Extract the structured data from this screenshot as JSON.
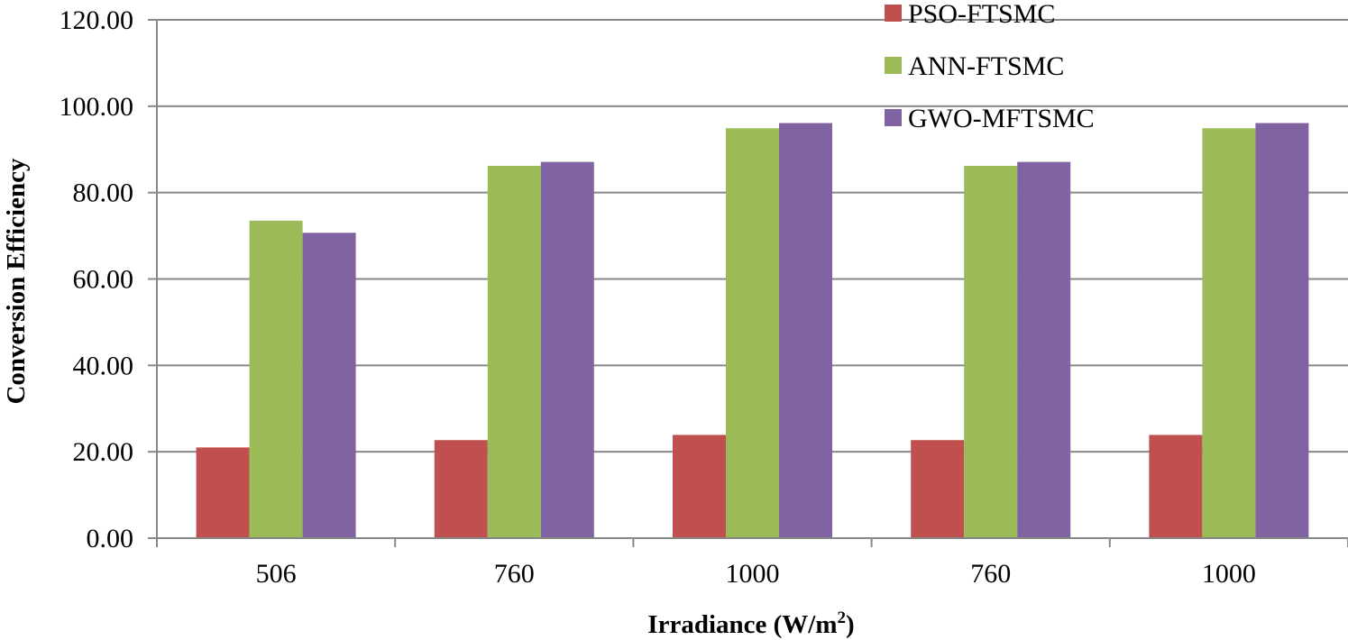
{
  "chart_data": {
    "type": "bar",
    "title": "",
    "xlabel": "Irradiance (W/m²)",
    "xlabel_main": "Irradiance (W/m",
    "xlabel_sup": "2",
    "xlabel_end": ")",
    "ylabel": "Conversion Efficiency",
    "ylim": [
      0,
      120
    ],
    "yticks": [
      "0.00",
      "20.00",
      "40.00",
      "60.00",
      "80.00",
      "100.00",
      "120.00"
    ],
    "grid": true,
    "legend_position": "top-right",
    "categories": [
      "506",
      "760",
      "1000",
      "760",
      "1000"
    ],
    "series": [
      {
        "name": "PSO-FTSMC",
        "color": "#C0504D",
        "values": [
          21.0,
          22.7,
          23.9,
          22.7,
          23.9
        ]
      },
      {
        "name": "ANN-FTSMC",
        "color": "#9BBB59",
        "values": [
          73.5,
          86.2,
          94.9,
          86.2,
          94.9
        ]
      },
      {
        "name": "GWO-MFTSMC",
        "color": "#8064A2",
        "values": [
          70.7,
          87.1,
          96.1,
          87.1,
          96.1
        ]
      }
    ]
  }
}
